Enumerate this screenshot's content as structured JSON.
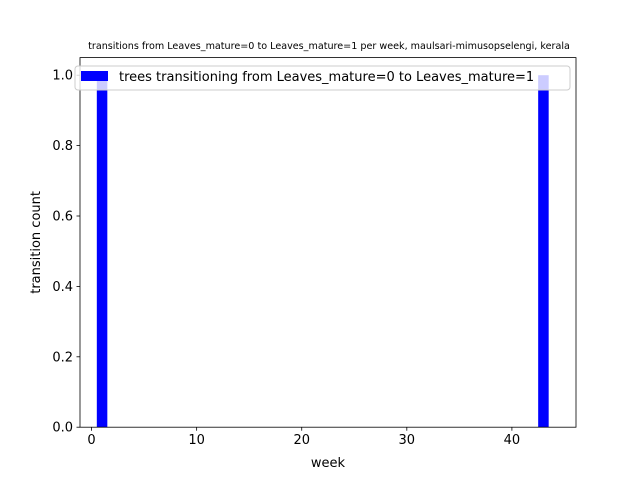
{
  "chart_data": {
    "type": "bar",
    "title": "transitions from Leaves_mature=0 to Leaves_mature=1 per week, maulsari-mimusopselengi, kerala",
    "xlabel": "week",
    "ylabel": "transition count",
    "xlim": [
      -1.1,
      46.1
    ],
    "ylim": [
      0,
      1.05
    ],
    "xticks": [
      0,
      10,
      20,
      30,
      40
    ],
    "yticks": [
      0.0,
      0.2,
      0.4,
      0.6,
      0.8,
      1.0
    ],
    "xtick_labels": [
      "0",
      "10",
      "20",
      "30",
      "40"
    ],
    "ytick_labels": [
      "0.0",
      "0.2",
      "0.4",
      "0.6",
      "0.8",
      "1.0"
    ],
    "bar_width": 1,
    "series": [
      {
        "name": "trees transitioning from Leaves_mature=0 to Leaves_mature=1",
        "color": "#0000ff",
        "x": [
          1,
          2,
          3,
          4,
          5,
          6,
          7,
          8,
          9,
          10,
          11,
          12,
          13,
          14,
          15,
          16,
          17,
          18,
          19,
          20,
          21,
          22,
          23,
          24,
          25,
          26,
          27,
          28,
          29,
          30,
          31,
          32,
          33,
          34,
          35,
          36,
          37,
          38,
          39,
          40,
          41,
          42,
          43,
          44
        ],
        "values": [
          1,
          0,
          0,
          0,
          0,
          0,
          0,
          0,
          0,
          0,
          0,
          0,
          0,
          0,
          0,
          0,
          0,
          0,
          0,
          0,
          0,
          0,
          0,
          0,
          0,
          0,
          0,
          0,
          0,
          0,
          0,
          0,
          0,
          0,
          0,
          0,
          0,
          0,
          0,
          0,
          0,
          0,
          1,
          0
        ]
      }
    ],
    "legend": {
      "placement": "top"
    },
    "grid": false
  }
}
